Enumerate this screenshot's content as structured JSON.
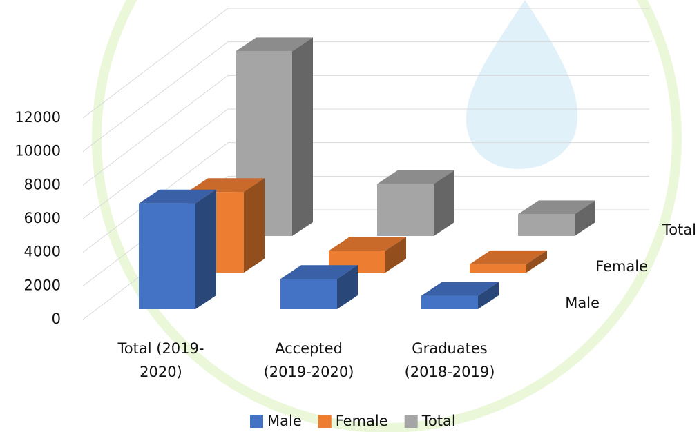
{
  "chart_data": {
    "type": "bar3d",
    "categories": [
      "Total (2019-2020)",
      "Accepted (2019-2020)",
      "Graduates (2018-2019)"
    ],
    "series": [
      {
        "name": "Male",
        "color": "#4472c4",
        "values": [
          6300,
          1800,
          800
        ]
      },
      {
        "name": "Female",
        "color": "#ed7d31",
        "values": [
          4800,
          1300,
          500
        ]
      },
      {
        "name": "Total",
        "color": "#a5a5a5",
        "values": [
          11000,
          3100,
          1300
        ]
      }
    ],
    "ylim": [
      0,
      12000
    ],
    "yticks": [
      0,
      2000,
      4000,
      6000,
      8000,
      10000,
      12000
    ],
    "grid": true,
    "legend": "bottom"
  }
}
